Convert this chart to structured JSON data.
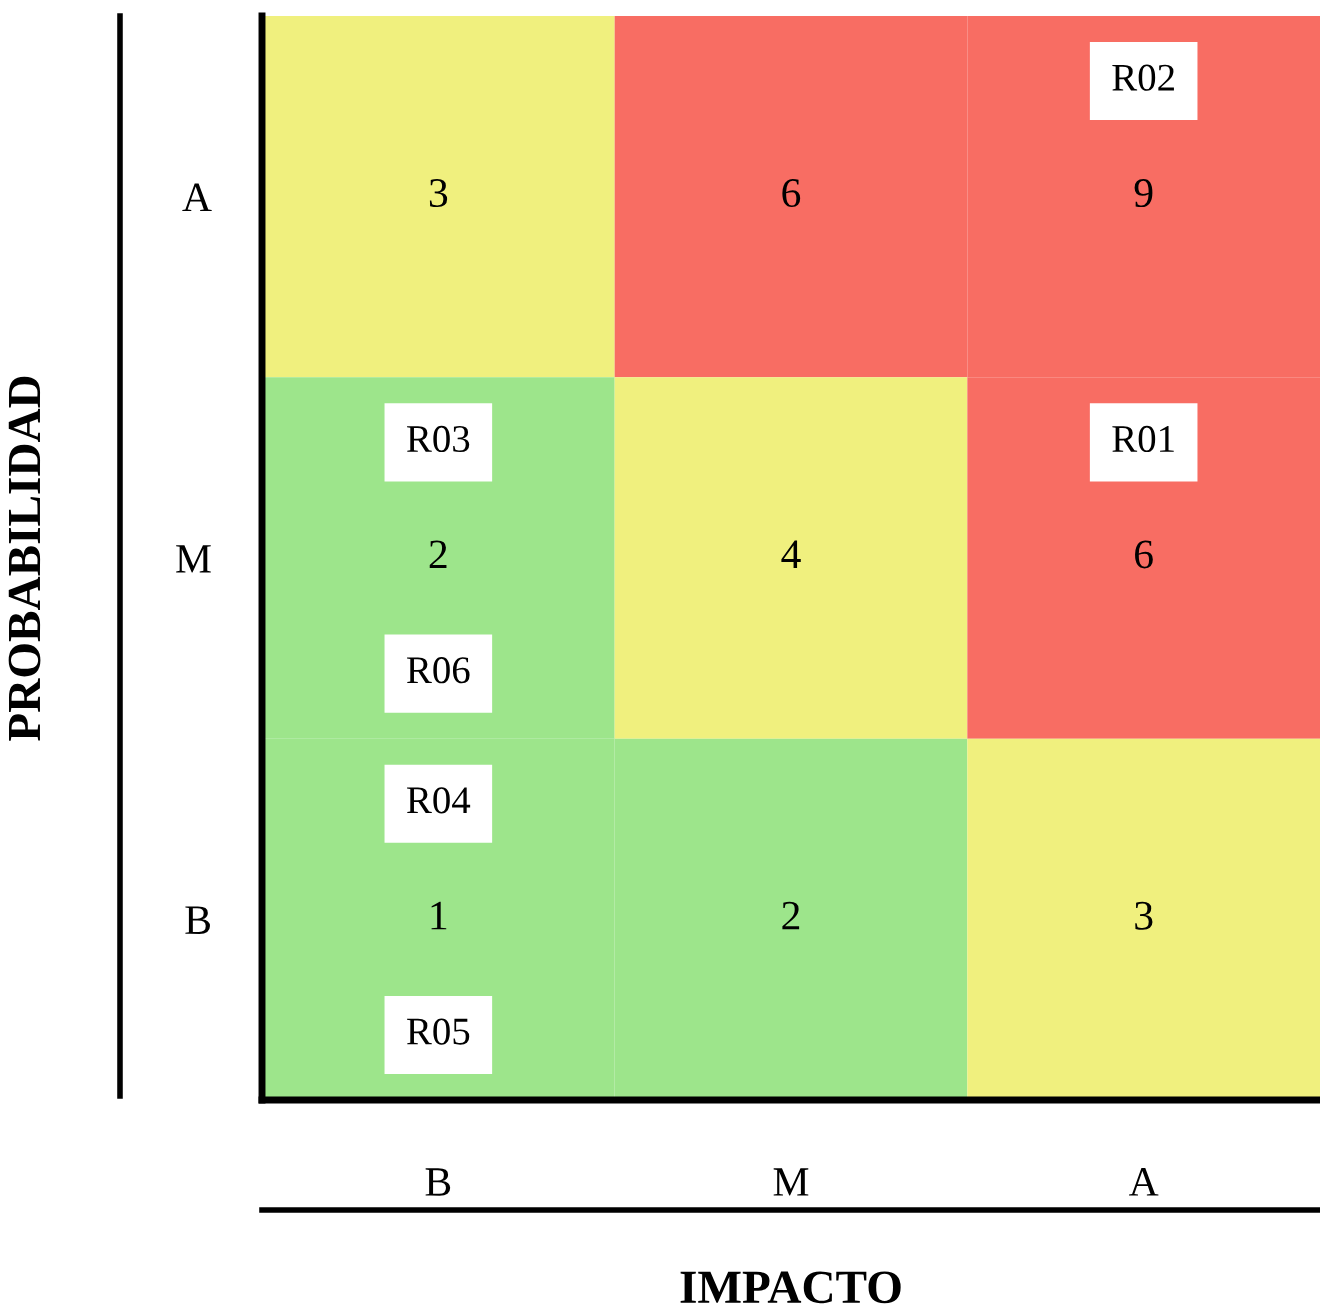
{
  "chart_data": {
    "type": "heatmap",
    "xlabel": "IMPACTO",
    "ylabel": "PROBABILIDAD",
    "categories": [
      "B",
      "M",
      "A"
    ],
    "y_categories": [
      "A",
      "M",
      "B"
    ],
    "cells": [
      [
        3,
        6,
        9
      ],
      [
        2,
        4,
        6
      ],
      [
        1,
        2,
        3
      ]
    ],
    "colors": [
      "#f0f07e",
      "#f86d63",
      "#f86d63",
      "#9de58b",
      "#f0f07e",
      "#f86d63",
      "#9de58b",
      "#9de58b",
      "#f0f07e"
    ],
    "data_labels": true,
    "annotations": [
      "R02",
      "R03",
      "R01",
      "R06",
      "R04",
      "R05"
    ]
  }
}
